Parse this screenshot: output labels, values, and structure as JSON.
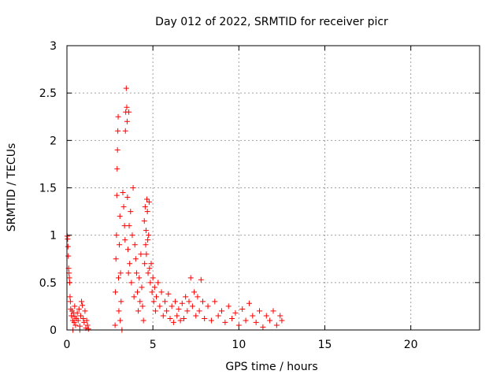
{
  "chart_data": {
    "type": "scatter",
    "title": "Day 012 of 2022, SRMTID for receiver picr",
    "xlabel": "GPS time / hours",
    "ylabel": "SRMTID / TECUs",
    "xlim": [
      0,
      24
    ],
    "ylim": [
      0,
      3
    ],
    "xticks": [
      0,
      5,
      10,
      15,
      20
    ],
    "xtick_labels": [
      "0",
      "5",
      "10",
      "15",
      "20"
    ],
    "yticks": [
      0,
      0.5,
      1,
      1.5,
      2,
      2.5,
      3
    ],
    "ytick_labels": [
      "0",
      "0.5",
      "1",
      "1.5",
      "2",
      "2.5",
      "3"
    ],
    "grid": true,
    "marker": "+",
    "color": "#ff0000",
    "series": [
      {
        "name": "SRMTID",
        "points": [
          [
            0.02,
            0.99
          ],
          [
            0.04,
            0.96
          ],
          [
            0.06,
            0.88
          ],
          [
            0.08,
            0.78
          ],
          [
            0.1,
            0.65
          ],
          [
            0.12,
            0.6
          ],
          [
            0.14,
            0.55
          ],
          [
            0.16,
            0.5
          ],
          [
            0.18,
            0.35
          ],
          [
            0.22,
            0.22
          ],
          [
            0.26,
            0.15
          ],
          [
            0.3,
            0.2
          ],
          [
            0.34,
            0.1
          ],
          [
            0.38,
            0.18
          ],
          [
            0.42,
            0.08
          ],
          [
            0.46,
            0.14
          ],
          [
            0.5,
            0.05
          ],
          [
            0.55,
            0.12
          ],
          [
            0.6,
            0.18
          ],
          [
            0.65,
            0.1
          ],
          [
            0.7,
            0.22
          ],
          [
            0.75,
            0.04
          ],
          [
            0.8,
            0.15
          ],
          [
            0.85,
            0.3
          ],
          [
            0.9,
            0.26
          ],
          [
            0.95,
            0.12
          ],
          [
            1.0,
            0.08
          ],
          [
            1.05,
            0.2
          ],
          [
            1.1,
            0.02
          ],
          [
            1.15,
            0.1
          ],
          [
            1.2,
            0.05
          ],
          [
            0.35,
            0.0
          ],
          [
            0.75,
            0.0
          ],
          [
            1.25,
            0.01
          ],
          [
            0.2,
            0.3
          ],
          [
            0.45,
            0.25
          ],
          [
            2.8,
            0.05
          ],
          [
            2.82,
            0.4
          ],
          [
            2.85,
            0.75
          ],
          [
            2.88,
            1.0
          ],
          [
            2.9,
            1.42
          ],
          [
            2.92,
            1.7
          ],
          [
            2.94,
            1.9
          ],
          [
            2.96,
            2.1
          ],
          [
            2.98,
            2.25
          ],
          [
            3.0,
            0.55
          ],
          [
            3.02,
            0.2
          ],
          [
            3.05,
            0.9
          ],
          [
            3.08,
            1.2
          ],
          [
            3.1,
            0.1
          ],
          [
            3.12,
            0.6
          ],
          [
            3.15,
            0.3
          ],
          [
            3.2,
            0.0
          ],
          [
            3.25,
            1.45
          ],
          [
            3.3,
            1.3
          ],
          [
            3.35,
            1.1
          ],
          [
            3.38,
            0.95
          ],
          [
            3.4,
            2.1
          ],
          [
            3.42,
            2.3
          ],
          [
            3.45,
            2.55
          ],
          [
            3.48,
            2.35
          ],
          [
            3.5,
            2.2
          ],
          [
            3.52,
            1.4
          ],
          [
            3.55,
            0.85
          ],
          [
            3.58,
            0.6
          ],
          [
            3.6,
            2.3
          ],
          [
            3.62,
            1.1
          ],
          [
            3.65,
            0.7
          ],
          [
            3.7,
            1.25
          ],
          [
            3.75,
            0.5
          ],
          [
            3.8,
            1.0
          ],
          [
            3.85,
            1.5
          ],
          [
            3.9,
            0.35
          ],
          [
            3.95,
            0.9
          ],
          [
            4.0,
            0.75
          ],
          [
            4.05,
            0.6
          ],
          [
            4.1,
            0.4
          ],
          [
            4.15,
            0.2
          ],
          [
            4.2,
            0.55
          ],
          [
            4.25,
            0.3
          ],
          [
            4.3,
            0.8
          ],
          [
            4.35,
            0.45
          ],
          [
            4.4,
            0.25
          ],
          [
            4.45,
            0.1
          ],
          [
            4.5,
            1.15
          ],
          [
            4.52,
            0.7
          ],
          [
            4.55,
            1.3
          ],
          [
            4.58,
            0.9
          ],
          [
            4.6,
            1.05
          ],
          [
            4.62,
            0.8
          ],
          [
            4.65,
            1.38
          ],
          [
            4.68,
            1.25
          ],
          [
            4.7,
            0.95
          ],
          [
            4.72,
            0.6
          ],
          [
            4.75,
            1.0
          ],
          [
            4.78,
            1.35
          ],
          [
            4.8,
            0.65
          ],
          [
            4.85,
            0.5
          ],
          [
            4.9,
            0.7
          ],
          [
            4.95,
            0.4
          ],
          [
            5.0,
            0.55
          ],
          [
            5.05,
            0.3
          ],
          [
            5.1,
            0.45
          ],
          [
            5.15,
            0.2
          ],
          [
            5.2,
            0.35
          ],
          [
            5.3,
            0.5
          ],
          [
            5.4,
            0.25
          ],
          [
            5.5,
            0.4
          ],
          [
            5.6,
            0.15
          ],
          [
            5.7,
            0.3
          ],
          [
            5.8,
            0.2
          ],
          [
            5.9,
            0.38
          ],
          [
            6.0,
            0.12
          ],
          [
            6.1,
            0.25
          ],
          [
            6.2,
            0.08
          ],
          [
            6.3,
            0.3
          ],
          [
            6.4,
            0.15
          ],
          [
            6.5,
            0.22
          ],
          [
            6.6,
            0.1
          ],
          [
            6.7,
            0.28
          ],
          [
            6.8,
            0.12
          ],
          [
            6.9,
            0.35
          ],
          [
            7.0,
            0.2
          ],
          [
            7.1,
            0.3
          ],
          [
            7.2,
            0.55
          ],
          [
            7.3,
            0.25
          ],
          [
            7.4,
            0.4
          ],
          [
            7.5,
            0.15
          ],
          [
            7.6,
            0.35
          ],
          [
            7.7,
            0.2
          ],
          [
            7.8,
            0.53
          ],
          [
            7.9,
            0.3
          ],
          [
            8.0,
            0.12
          ],
          [
            8.2,
            0.25
          ],
          [
            8.4,
            0.1
          ],
          [
            8.6,
            0.3
          ],
          [
            8.8,
            0.15
          ],
          [
            9.0,
            0.2
          ],
          [
            9.2,
            0.08
          ],
          [
            9.4,
            0.25
          ],
          [
            9.6,
            0.12
          ],
          [
            9.8,
            0.18
          ],
          [
            10.0,
            0.05
          ],
          [
            10.2,
            0.22
          ],
          [
            10.4,
            0.1
          ],
          [
            10.6,
            0.28
          ],
          [
            10.8,
            0.15
          ],
          [
            11.0,
            0.08
          ],
          [
            11.2,
            0.2
          ],
          [
            11.4,
            0.03
          ],
          [
            11.6,
            0.15
          ],
          [
            11.8,
            0.1
          ],
          [
            12.0,
            0.2
          ],
          [
            12.2,
            0.05
          ],
          [
            12.4,
            0.15
          ],
          [
            12.5,
            0.1
          ]
        ]
      }
    ]
  }
}
